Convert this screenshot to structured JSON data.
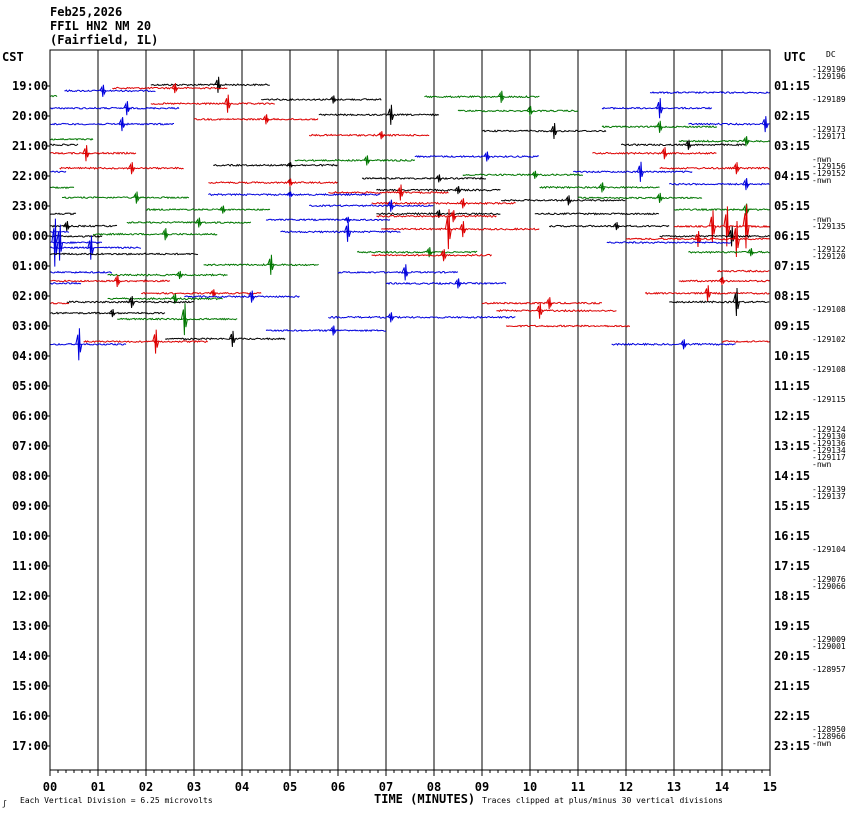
{
  "header": {
    "line1": "Feb25,2026",
    "line2": "FFIL HN2 NM 20",
    "line3": "(Fairfield, IL)"
  },
  "left_axis_title": "CST",
  "right_axis_title": "UTC",
  "dc_label": "DC",
  "footer": {
    "xlabel": "TIME (MINUTES)",
    "scale_note": "Each Vertical Division =     6.25 microvolts",
    "clip_note": "Traces clipped at plus/minus 30 vertical divisions",
    "corner_mark": "ʃ"
  },
  "chart_data": {
    "type": "helicorder",
    "title": "FFIL HN2 NM 20 (Fairfield, IL)",
    "date": "Feb25,2026",
    "xlabel": "TIME (MINUTES)",
    "x_ticks": [
      "00",
      "01",
      "02",
      "03",
      "04",
      "05",
      "06",
      "07",
      "08",
      "09",
      "10",
      "11",
      "12",
      "13",
      "14",
      "15"
    ],
    "xlim": [
      0,
      15
    ],
    "rows_per_hour": 2,
    "row_minutes": 15,
    "cst_labels": [
      "19:00",
      "20:00",
      "21:00",
      "22:00",
      "23:00",
      "00:00",
      "01:00",
      "02:00",
      "03:00",
      "04:00",
      "05:00",
      "06:00",
      "07:00",
      "08:00",
      "09:00",
      "10:00",
      "11:00",
      "12:00",
      "13:00",
      "14:00",
      "15:00",
      "16:00",
      "17:00"
    ],
    "utc_labels": [
      "01:15",
      "02:15",
      "03:15",
      "04:15",
      "05:15",
      "06:15",
      "07:15",
      "08:15",
      "09:15",
      "10:15",
      "11:15",
      "12:15",
      "13:15",
      "14:15",
      "15:15",
      "16:15",
      "17:15",
      "18:15",
      "19:15",
      "20:15",
      "21:15",
      "22:15",
      "23:15"
    ],
    "colors": [
      "#000000",
      "#dd0000",
      "#0000dd",
      "#007700"
    ],
    "dc_offsets": [
      {
        "row": 0,
        "values": [
          "-129196",
          "-129196"
        ]
      },
      {
        "row": 1,
        "values": [
          "-129189"
        ]
      },
      {
        "row": 2,
        "values": [
          "-129173",
          "-129171"
        ]
      },
      {
        "row": 3,
        "values": [
          "-nwn",
          "-129156",
          "-129152",
          "-nwn"
        ]
      },
      {
        "row": 5,
        "values": [
          "-nwn",
          "-129135"
        ]
      },
      {
        "row": 6,
        "values": [
          "-129122",
          "-129120"
        ]
      },
      {
        "row": 8,
        "values": [
          "-129108"
        ]
      },
      {
        "row": 9,
        "values": [
          "-129102"
        ]
      },
      {
        "row": 10,
        "values": [
          "-129108"
        ]
      },
      {
        "row": 11,
        "values": [
          "-129115"
        ]
      },
      {
        "row": 12,
        "values": [
          "-129124",
          "-129130",
          "-129136",
          "-129134",
          "-129117",
          "-nwn"
        ]
      },
      {
        "row": 14,
        "values": [
          "-129139",
          "-129137"
        ]
      },
      {
        "row": 16,
        "values": [
          "-129104"
        ]
      },
      {
        "row": 17,
        "values": [
          "-129076",
          "-129066"
        ]
      },
      {
        "row": 19,
        "values": [
          "-129009",
          "-129001"
        ]
      },
      {
        "row": 20,
        "values": [
          "-128957"
        ]
      },
      {
        "row": 22,
        "values": [
          "-128950",
          "-128966",
          "-nwn"
        ]
      }
    ],
    "traces": [
      {
        "y": 18.96,
        "x0": 2.1,
        "x1": 4.6,
        "c": 0,
        "ev": [
          [
            3.5,
            8
          ]
        ]
      },
      {
        "y": 19.07,
        "x0": 1.3,
        "x1": 3.7,
        "c": 1,
        "ev": [
          [
            2.6,
            5
          ]
        ]
      },
      {
        "y": 19.16,
        "x0": 0.3,
        "x1": 2.2,
        "c": 2,
        "ev": [
          [
            1.1,
            6
          ]
        ]
      },
      {
        "y": 19.22,
        "x0": 12.5,
        "x1": 15.0,
        "c": 2,
        "ev": []
      },
      {
        "y": 19.34,
        "x0": 0.0,
        "x1": 0.15,
        "c": 3,
        "ev": []
      },
      {
        "y": 19.36,
        "x0": 7.8,
        "x1": 10.2,
        "c": 3,
        "ev": [
          [
            9.4,
            6
          ]
        ]
      },
      {
        "y": 19.45,
        "x0": 4.4,
        "x1": 6.9,
        "c": 0,
        "ev": [
          [
            5.9,
            4
          ]
        ]
      },
      {
        "y": 19.59,
        "x0": 2.1,
        "x1": 4.7,
        "c": 1,
        "ev": [
          [
            3.7,
            9
          ]
        ]
      },
      {
        "y": 19.74,
        "x0": 0.0,
        "x1": 2.7,
        "c": 2,
        "ev": [
          [
            1.6,
            7
          ]
        ]
      },
      {
        "y": 19.74,
        "x0": 11.5,
        "x1": 13.8,
        "c": 2,
        "ev": [
          [
            12.7,
            10
          ]
        ]
      },
      {
        "y": 19.83,
        "x0": 8.5,
        "x1": 11.0,
        "c": 3,
        "ev": [
          [
            10.0,
            5
          ]
        ]
      },
      {
        "y": 19.96,
        "x0": 5.6,
        "x1": 8.1,
        "c": 0,
        "ev": [
          [
            7.1,
            10
          ]
        ]
      },
      {
        "y": 20.11,
        "x0": 3.0,
        "x1": 5.6,
        "c": 1,
        "ev": [
          [
            4.5,
            5
          ]
        ]
      },
      {
        "y": 20.27,
        "x0": 0.0,
        "x1": 2.6,
        "c": 2,
        "ev": [
          [
            1.5,
            7
          ]
        ]
      },
      {
        "y": 20.27,
        "x0": 13.3,
        "x1": 15.0,
        "c": 2,
        "ev": [
          [
            14.9,
            8
          ]
        ]
      },
      {
        "y": 20.36,
        "x0": 11.5,
        "x1": 13.9,
        "c": 3,
        "ev": [
          [
            12.7,
            6
          ]
        ]
      },
      {
        "y": 20.5,
        "x0": 9.0,
        "x1": 11.6,
        "c": 0,
        "ev": [
          [
            10.5,
            8
          ]
        ]
      },
      {
        "y": 20.64,
        "x0": 5.4,
        "x1": 7.9,
        "c": 1,
        "ev": [
          [
            6.9,
            4
          ]
        ]
      },
      {
        "y": 20.78,
        "x0": 0.0,
        "x1": 0.9,
        "c": 3,
        "ev": []
      },
      {
        "y": 20.84,
        "x0": 13.1,
        "x1": 15.0,
        "c": 3,
        "ev": [
          [
            14.5,
            5
          ]
        ]
      },
      {
        "y": 20.96,
        "x0": 0.0,
        "x1": 0.6,
        "c": 0,
        "ev": []
      },
      {
        "y": 20.96,
        "x0": 11.9,
        "x1": 14.5,
        "c": 0,
        "ev": [
          [
            13.3,
            5
          ]
        ]
      },
      {
        "y": 21.24,
        "x0": 0.0,
        "x1": 1.8,
        "c": 1,
        "ev": [
          [
            0.75,
            8
          ]
        ]
      },
      {
        "y": 21.24,
        "x0": 11.3,
        "x1": 13.9,
        "c": 1,
        "ev": [
          [
            12.8,
            6
          ]
        ]
      },
      {
        "y": 21.35,
        "x0": 7.6,
        "x1": 10.2,
        "c": 2,
        "ev": [
          [
            9.1,
            5
          ]
        ]
      },
      {
        "y": 21.48,
        "x0": 5.1,
        "x1": 7.6,
        "c": 3,
        "ev": [
          [
            6.6,
            5
          ]
        ]
      },
      {
        "y": 21.64,
        "x0": 3.4,
        "x1": 6.0,
        "c": 0,
        "ev": [
          [
            5.0,
            3
          ]
        ]
      },
      {
        "y": 21.74,
        "x0": 0.2,
        "x1": 2.8,
        "c": 1,
        "ev": [
          [
            1.7,
            6
          ]
        ]
      },
      {
        "y": 21.74,
        "x0": 12.7,
        "x1": 15.0,
        "c": 1,
        "ev": [
          [
            14.3,
            6
          ]
        ]
      },
      {
        "y": 21.86,
        "x0": 10.9,
        "x1": 13.4,
        "c": 2,
        "ev": [
          [
            12.3,
            10
          ]
        ]
      },
      {
        "y": 21.86,
        "x0": 0.0,
        "x1": 0.35,
        "c": 2,
        "ev": []
      },
      {
        "y": 21.96,
        "x0": 8.6,
        "x1": 11.1,
        "c": 3,
        "ev": [
          [
            10.1,
            4
          ]
        ]
      },
      {
        "y": 22.08,
        "x0": 6.5,
        "x1": 9.1,
        "c": 0,
        "ev": [
          [
            8.1,
            4
          ]
        ]
      },
      {
        "y": 22.22,
        "x0": 3.3,
        "x1": 6.0,
        "c": 1,
        "ev": [
          [
            5.0,
            4
          ]
        ]
      },
      {
        "y": 22.27,
        "x0": 12.9,
        "x1": 15.0,
        "c": 2,
        "ev": [
          [
            14.5,
            6
          ]
        ]
      },
      {
        "y": 22.38,
        "x0": 10.2,
        "x1": 12.7,
        "c": 3,
        "ev": [
          [
            11.5,
            5
          ]
        ]
      },
      {
        "y": 22.39,
        "x0": 0.0,
        "x1": 0.5,
        "c": 3,
        "ev": []
      },
      {
        "y": 22.47,
        "x0": 6.8,
        "x1": 9.4,
        "c": 0,
        "ev": [
          [
            8.5,
            4
          ]
        ]
      },
      {
        "y": 22.55,
        "x0": 5.8,
        "x1": 8.3,
        "c": 1,
        "ev": [
          [
            7.3,
            8
          ]
        ]
      },
      {
        "y": 22.62,
        "x0": 3.3,
        "x1": 6.9,
        "c": 2,
        "ev": [
          [
            5.0,
            3
          ]
        ]
      },
      {
        "y": 22.72,
        "x0": 0.25,
        "x1": 2.9,
        "c": 3,
        "ev": [
          [
            1.8,
            6
          ]
        ]
      },
      {
        "y": 22.73,
        "x0": 11.0,
        "x1": 13.6,
        "c": 3,
        "ev": [
          [
            12.7,
            5
          ]
        ]
      },
      {
        "y": 22.81,
        "x0": 9.4,
        "x1": 12.0,
        "c": 0,
        "ev": [
          [
            10.8,
            5
          ]
        ]
      },
      {
        "y": 22.91,
        "x0": 6.7,
        "x1": 9.7,
        "c": 1,
        "ev": [
          [
            8.6,
            5
          ]
        ]
      },
      {
        "y": 22.99,
        "x0": 5.4,
        "x1": 8.0,
        "c": 2,
        "ev": [
          [
            7.1,
            6
          ]
        ]
      },
      {
        "y": 23.12,
        "x0": 2.0,
        "x1": 4.6,
        "c": 3,
        "ev": [
          [
            3.6,
            4
          ]
        ]
      },
      {
        "y": 23.12,
        "x0": 13.0,
        "x1": 15.0,
        "c": 3,
        "ev": [
          [
            14.5,
            6
          ]
        ]
      },
      {
        "y": 23.26,
        "x0": 0.0,
        "x1": 0.55,
        "c": 0,
        "ev": []
      },
      {
        "y": 23.26,
        "x0": 6.8,
        "x1": 9.4,
        "c": 0,
        "ev": [
          [
            8.1,
            4
          ]
        ]
      },
      {
        "y": 23.26,
        "x0": 10.1,
        "x1": 12.7,
        "c": 0,
        "ev": []
      },
      {
        "y": 23.34,
        "x0": 6.8,
        "x1": 9.3,
        "c": 1,
        "ev": [
          [
            8.4,
            6
          ]
        ]
      },
      {
        "y": 23.46,
        "x0": 4.5,
        "x1": 7.1,
        "c": 2,
        "ev": [
          [
            6.2,
            3
          ]
        ]
      },
      {
        "y": 23.55,
        "x0": 1.6,
        "x1": 4.2,
        "c": 3,
        "ev": [
          [
            3.1,
            5
          ]
        ]
      },
      {
        "y": 23.67,
        "x0": 10.4,
        "x1": 12.9,
        "c": 0,
        "ev": [
          [
            11.8,
            4
          ]
        ]
      },
      {
        "y": 23.67,
        "x0": 0.0,
        "x1": 1.4,
        "c": 0,
        "ev": [
          [
            0.35,
            5
          ]
        ]
      },
      {
        "y": 23.68,
        "x0": 13.0,
        "x1": 15.0,
        "c": 1,
        "ev": [
          [
            13.8,
            16
          ],
          [
            14.1,
            20
          ],
          [
            14.5,
            22
          ]
        ]
      },
      {
        "y": 23.77,
        "x0": 6.9,
        "x1": 10.2,
        "c": 1,
        "ev": [
          [
            8.3,
            20
          ],
          [
            8.6,
            8
          ]
        ]
      },
      {
        "y": 23.86,
        "x0": 4.8,
        "x1": 7.3,
        "c": 2,
        "ev": [
          [
            6.2,
            10
          ]
        ]
      },
      {
        "y": 23.86,
        "x0": 0.0,
        "x1": 0.4,
        "c": 2,
        "ev": []
      },
      {
        "y": 23.94,
        "x0": 0.9,
        "x1": 3.5,
        "c": 3,
        "ev": [
          [
            2.4,
            6
          ]
        ]
      },
      {
        "y": 24.01,
        "x0": 0.0,
        "x1": 1.1,
        "c": 0,
        "ev": []
      },
      {
        "y": 24.01,
        "x0": 12.7,
        "x1": 15.0,
        "c": 0,
        "ev": [
          [
            14.2,
            10
          ]
        ]
      },
      {
        "y": 24.1,
        "x0": 12.0,
        "x1": 15.0,
        "c": 1,
        "ev": [
          [
            13.5,
            8
          ],
          [
            14.3,
            18
          ]
        ]
      },
      {
        "y": 24.22,
        "x0": 0.0,
        "x1": 1.1,
        "c": 2,
        "ev": [
          [
            0.1,
            24
          ],
          [
            0.2,
            18
          ]
        ]
      },
      {
        "y": 24.22,
        "x0": 11.6,
        "x1": 14.2,
        "c": 2,
        "ev": []
      },
      {
        "y": 24.39,
        "x0": 0.0,
        "x1": 1.9,
        "c": 2,
        "ev": [
          [
            0.85,
            12
          ]
        ]
      },
      {
        "y": 24.54,
        "x0": 6.4,
        "x1": 8.9,
        "c": 3,
        "ev": [
          [
            7.9,
            5
          ]
        ]
      },
      {
        "y": 24.54,
        "x0": 13.3,
        "x1": 15.0,
        "c": 3,
        "ev": [
          [
            14.6,
            4
          ]
        ]
      },
      {
        "y": 24.6,
        "x0": 0.0,
        "x1": 3.1,
        "c": 0,
        "ev": []
      },
      {
        "y": 24.64,
        "x0": 6.7,
        "x1": 9.2,
        "c": 1,
        "ev": [
          [
            8.2,
            6
          ]
        ]
      },
      {
        "y": 24.96,
        "x0": 3.2,
        "x1": 5.6,
        "c": 3,
        "ev": [
          [
            4.6,
            10
          ]
        ]
      },
      {
        "y": 25.17,
        "x0": 13.9,
        "x1": 15.0,
        "c": 1,
        "ev": []
      },
      {
        "y": 25.21,
        "x0": 0.0,
        "x1": 1.3,
        "c": 2,
        "ev": []
      },
      {
        "y": 25.21,
        "x0": 6.0,
        "x1": 8.5,
        "c": 2,
        "ev": [
          [
            7.4,
            8
          ]
        ]
      },
      {
        "y": 25.3,
        "x0": 1.2,
        "x1": 3.7,
        "c": 3,
        "ev": [
          [
            2.7,
            4
          ]
        ]
      },
      {
        "y": 25.5,
        "x0": 0.0,
        "x1": 2.5,
        "c": 1,
        "ev": [
          [
            1.4,
            6
          ]
        ]
      },
      {
        "y": 25.5,
        "x0": 13.1,
        "x1": 15.0,
        "c": 1,
        "ev": [
          [
            14.0,
            4
          ]
        ]
      },
      {
        "y": 25.58,
        "x0": 0.0,
        "x1": 0.65,
        "c": 2,
        "ev": []
      },
      {
        "y": 25.58,
        "x0": 7.0,
        "x1": 9.5,
        "c": 2,
        "ev": [
          [
            8.5,
            5
          ]
        ]
      },
      {
        "y": 25.91,
        "x0": 1.9,
        "x1": 4.4,
        "c": 1,
        "ev": [
          [
            3.4,
            4
          ]
        ]
      },
      {
        "y": 25.91,
        "x0": 12.4,
        "x1": 15.0,
        "c": 1,
        "ev": [
          [
            13.7,
            8
          ]
        ]
      },
      {
        "y": 26.02,
        "x0": 2.8,
        "x1": 5.2,
        "c": 2,
        "ev": [
          [
            4.2,
            6
          ]
        ]
      },
      {
        "y": 26.09,
        "x0": 1.2,
        "x1": 3.6,
        "c": 3,
        "ev": [
          [
            2.6,
            5
          ]
        ]
      },
      {
        "y": 26.2,
        "x0": 0.35,
        "x1": 3.0,
        "c": 0,
        "ev": [
          [
            1.7,
            6
          ]
        ]
      },
      {
        "y": 26.2,
        "x0": 12.9,
        "x1": 15.0,
        "c": 0,
        "ev": [
          [
            14.3,
            14
          ]
        ]
      },
      {
        "y": 26.24,
        "x0": 0.0,
        "x1": 0.4,
        "c": 1,
        "ev": []
      },
      {
        "y": 26.24,
        "x0": 9.0,
        "x1": 11.5,
        "c": 1,
        "ev": [
          [
            10.4,
            6
          ]
        ]
      },
      {
        "y": 26.49,
        "x0": 9.3,
        "x1": 11.8,
        "c": 1,
        "ev": [
          [
            10.2,
            8
          ]
        ]
      },
      {
        "y": 26.57,
        "x0": 0.0,
        "x1": 2.4,
        "c": 0,
        "ev": [
          [
            1.3,
            4
          ]
        ]
      },
      {
        "y": 26.71,
        "x0": 5.8,
        "x1": 9.7,
        "c": 2,
        "ev": [
          [
            7.1,
            5
          ]
        ]
      },
      {
        "y": 26.77,
        "x0": 1.4,
        "x1": 3.9,
        "c": 3,
        "ev": [
          [
            2.8,
            16
          ]
        ]
      },
      {
        "y": 27.0,
        "x0": 9.5,
        "x1": 12.1,
        "c": 1,
        "ev": []
      },
      {
        "y": 27.15,
        "x0": 4.5,
        "x1": 7.0,
        "c": 2,
        "ev": [
          [
            5.9,
            5
          ]
        ]
      },
      {
        "y": 27.43,
        "x0": 2.4,
        "x1": 4.9,
        "c": 0,
        "ev": [
          [
            3.8,
            8
          ]
        ]
      },
      {
        "y": 27.52,
        "x0": 0.7,
        "x1": 3.3,
        "c": 1,
        "ev": [
          [
            2.2,
            12
          ]
        ]
      },
      {
        "y": 27.52,
        "x0": 14.0,
        "x1": 15.0,
        "c": 1,
        "ev": []
      },
      {
        "y": 27.61,
        "x0": 0.0,
        "x1": 1.6,
        "c": 2,
        "ev": [
          [
            0.6,
            16
          ]
        ]
      },
      {
        "y": 27.61,
        "x0": 11.7,
        "x1": 14.3,
        "c": 2,
        "ev": [
          [
            13.2,
            5
          ]
        ]
      }
    ]
  }
}
